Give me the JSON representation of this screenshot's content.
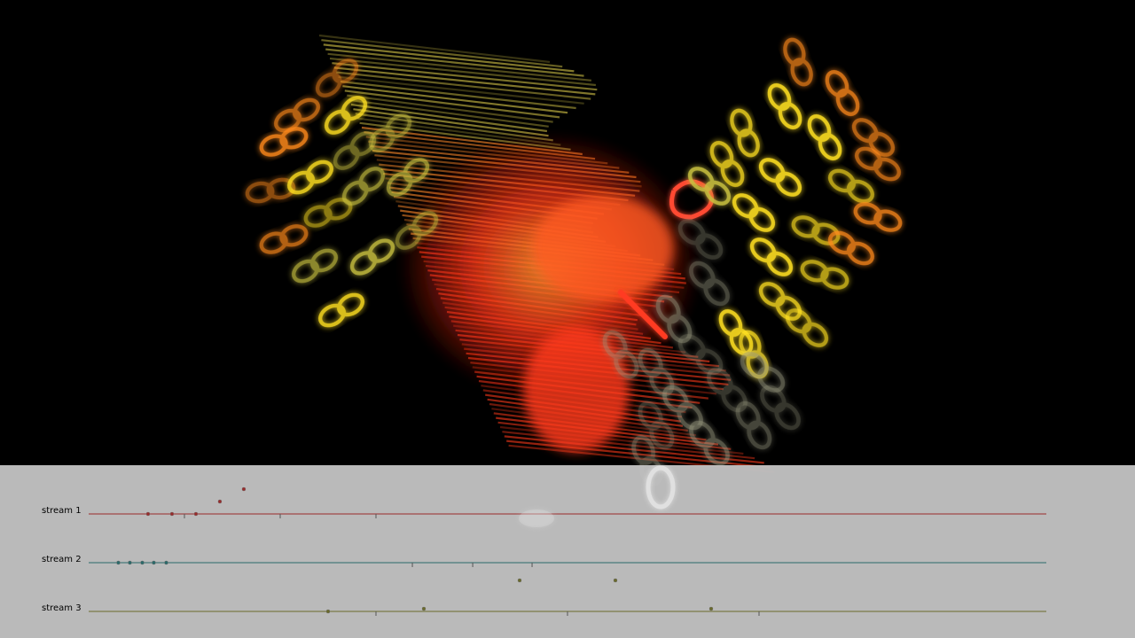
{
  "visualization": {
    "name": "particle-swirl-visual",
    "colors": {
      "background": "#000000",
      "red_core": "#ff3a1a",
      "orange": "#ff8a1a",
      "yellow": "#ffe020",
      "olive_yellow": "#c8c040",
      "grey_ghost": "#9a9a80"
    }
  },
  "panel": {
    "background": "#c0c0c0",
    "streams": [
      {
        "label": "stream 1",
        "color": "#9a2a2a",
        "events": [
          0.062,
          0.087,
          0.112,
          0.137,
          0.162
        ],
        "event_levels": [
          0,
          0,
          0,
          1,
          2
        ],
        "ticks": [
          0.1,
          0.2,
          0.3
        ]
      },
      {
        "label": "stream 2",
        "color": "#2a6a6a",
        "events": [
          0.031,
          0.043,
          0.056,
          0.068,
          0.081
        ],
        "event_levels": [
          0,
          0,
          0,
          0,
          0
        ],
        "ticks": [
          0.338,
          0.401,
          0.463
        ]
      },
      {
        "label": "stream 3",
        "color": "#6a6a2a",
        "events": [
          0.25,
          0.35,
          0.45,
          0.55,
          0.65
        ],
        "event_levels": [
          0,
          1,
          3,
          3,
          1
        ],
        "ticks": [
          0.3,
          0.5,
          0.7
        ]
      }
    ]
  }
}
